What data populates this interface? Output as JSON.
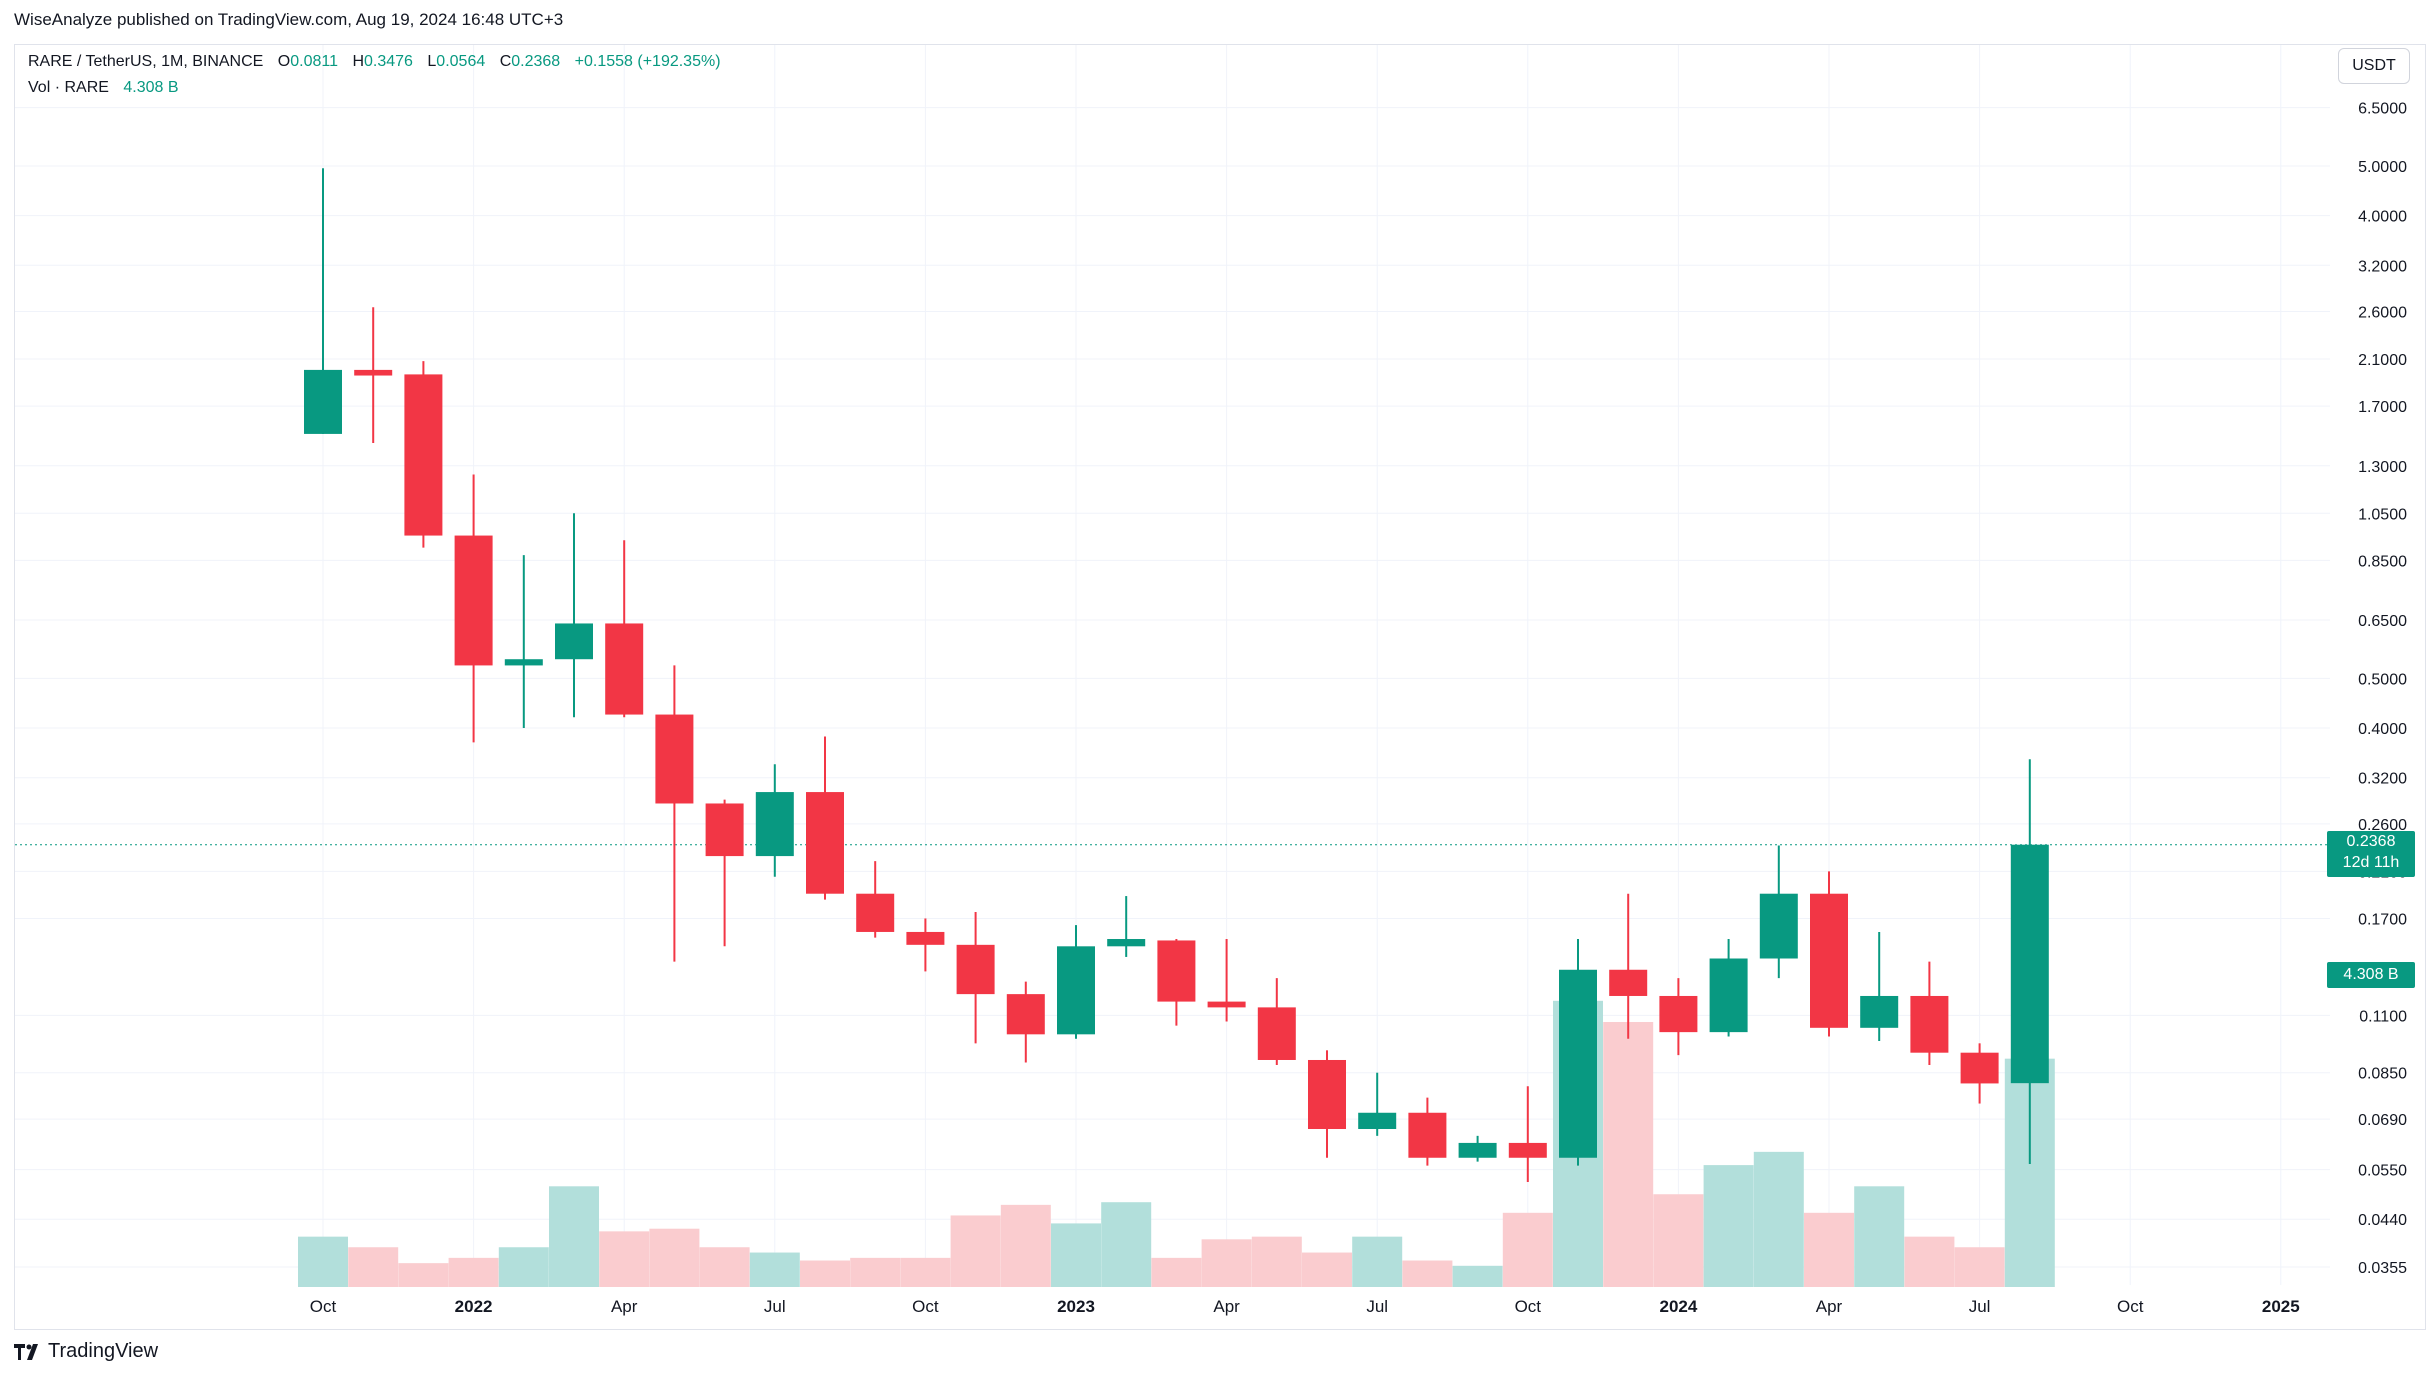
{
  "publisher": "WiseAnalyze published on TradingView.com, Aug 19, 2024 16:48 UTC+3",
  "legend": {
    "symbol": "RARE / TetherUS, 1M, BINANCE",
    "open_label": "O",
    "open": "0.0811",
    "high_label": "H",
    "high": "0.3476",
    "low_label": "L",
    "low": "0.0564",
    "close_label": "C",
    "close": "0.2368",
    "change": "+0.1558 (+192.35%)",
    "vol_label": "Vol · RARE",
    "vol_value": "4.308 B"
  },
  "currency_button": "USDT",
  "last_price_tag": {
    "price": "0.2368",
    "countdown": "12d 11h"
  },
  "volume_tag": "4.308 B",
  "brand": "TradingView",
  "colors": {
    "up": "#089981",
    "down": "#F23645",
    "up_vol": "#B2DFDB",
    "down_vol": "#FACCCF",
    "grid": "#F0F3FA"
  },
  "chart_data": {
    "type": "candlestick",
    "title": "RARE / TetherUS, 1M, BINANCE",
    "yscale": "log",
    "ylim": [
      0.0335,
      7.2
    ],
    "y_ticks": [
      "6.5000",
      "5.0000",
      "4.0000",
      "3.2000",
      "2.6000",
      "2.1000",
      "1.7000",
      "1.3000",
      "1.0500",
      "0.8500",
      "0.6500",
      "0.5000",
      "0.4000",
      "0.3200",
      "0.2600",
      "0.2100",
      "0.1700",
      "0.1100",
      "0.0850",
      "0.0690",
      "0.0550",
      "0.0440",
      "0.0355"
    ],
    "x_ticks": [
      {
        "label": "Oct",
        "index": 0
      },
      {
        "label": "2022",
        "index": 3
      },
      {
        "label": "Apr",
        "index": 6
      },
      {
        "label": "Jul",
        "index": 9
      },
      {
        "label": "Oct",
        "index": 12
      },
      {
        "label": "2023",
        "index": 15
      },
      {
        "label": "Apr",
        "index": 18
      },
      {
        "label": "Jul",
        "index": 21
      },
      {
        "label": "Oct",
        "index": 24
      },
      {
        "label": "2024",
        "index": 27
      },
      {
        "label": "Apr",
        "index": 30
      },
      {
        "label": "Jul",
        "index": 33
      },
      {
        "label": "Oct",
        "index": 36
      },
      {
        "label": "2025",
        "index": 39
      }
    ],
    "last_price": 0.2368,
    "series": [
      {
        "month": "2021-10",
        "open": 1.5,
        "high": 4.95,
        "low": 1.5,
        "close": 2.0,
        "volume": 0.95
      },
      {
        "month": "2021-11",
        "open": 2.0,
        "high": 2.65,
        "low": 1.44,
        "close": 1.95,
        "volume": 0.75
      },
      {
        "month": "2021-12",
        "open": 1.96,
        "high": 2.08,
        "low": 0.9,
        "close": 0.95,
        "volume": 0.45
      },
      {
        "month": "2022-01",
        "open": 0.95,
        "high": 1.25,
        "low": 0.375,
        "close": 0.53,
        "volume": 0.55
      },
      {
        "month": "2022-02",
        "open": 0.53,
        "high": 0.87,
        "low": 0.4,
        "close": 0.545,
        "volume": 0.75
      },
      {
        "month": "2022-03",
        "open": 0.545,
        "high": 1.05,
        "low": 0.42,
        "close": 0.64,
        "volume": 1.9
      },
      {
        "month": "2022-04",
        "open": 0.64,
        "high": 0.93,
        "low": 0.42,
        "close": 0.425,
        "volume": 1.05
      },
      {
        "month": "2022-05",
        "open": 0.425,
        "high": 0.53,
        "low": 0.14,
        "close": 0.285,
        "volume": 1.1
      },
      {
        "month": "2022-06",
        "open": 0.285,
        "high": 0.29,
        "low": 0.15,
        "close": 0.225,
        "volume": 0.75
      },
      {
        "month": "2022-07",
        "open": 0.225,
        "high": 0.34,
        "low": 0.205,
        "close": 0.3,
        "volume": 0.65
      },
      {
        "month": "2022-08",
        "open": 0.3,
        "high": 0.385,
        "low": 0.185,
        "close": 0.19,
        "volume": 0.5
      },
      {
        "month": "2022-09",
        "open": 0.19,
        "high": 0.22,
        "low": 0.156,
        "close": 0.16,
        "volume": 0.55
      },
      {
        "month": "2022-10",
        "open": 0.16,
        "high": 0.17,
        "low": 0.134,
        "close": 0.151,
        "volume": 0.55
      },
      {
        "month": "2022-11",
        "open": 0.151,
        "high": 0.175,
        "low": 0.097,
        "close": 0.121,
        "volume": 1.35
      },
      {
        "month": "2022-12",
        "open": 0.121,
        "high": 0.128,
        "low": 0.089,
        "close": 0.101,
        "volume": 1.55
      },
      {
        "month": "2023-01",
        "open": 0.101,
        "high": 0.165,
        "low": 0.099,
        "close": 0.15,
        "volume": 1.2
      },
      {
        "month": "2023-02",
        "open": 0.15,
        "high": 0.188,
        "low": 0.143,
        "close": 0.155,
        "volume": 1.6
      },
      {
        "month": "2023-03",
        "open": 0.154,
        "high": 0.155,
        "low": 0.105,
        "close": 0.117,
        "volume": 0.55
      },
      {
        "month": "2023-04",
        "open": 0.117,
        "high": 0.155,
        "low": 0.107,
        "close": 0.114,
        "volume": 0.9
      },
      {
        "month": "2023-05",
        "open": 0.114,
        "high": 0.13,
        "low": 0.088,
        "close": 0.09,
        "volume": 0.95
      },
      {
        "month": "2023-06",
        "open": 0.09,
        "high": 0.094,
        "low": 0.058,
        "close": 0.066,
        "volume": 0.65
      },
      {
        "month": "2023-07",
        "open": 0.066,
        "high": 0.085,
        "low": 0.064,
        "close": 0.071,
        "volume": 0.95
      },
      {
        "month": "2023-08",
        "open": 0.071,
        "high": 0.076,
        "low": 0.056,
        "close": 0.058,
        "volume": 0.5
      },
      {
        "month": "2023-09",
        "open": 0.058,
        "high": 0.064,
        "low": 0.057,
        "close": 0.062,
        "volume": 0.4
      },
      {
        "month": "2023-10",
        "open": 0.062,
        "high": 0.08,
        "low": 0.052,
        "close": 0.058,
        "volume": 1.4
      },
      {
        "month": "2023-11",
        "open": 0.058,
        "high": 0.155,
        "low": 0.056,
        "close": 0.135,
        "volume": 5.4
      },
      {
        "month": "2023-12",
        "open": 0.135,
        "high": 0.19,
        "low": 0.099,
        "close": 0.12,
        "volume": 5.0
      },
      {
        "month": "2024-01",
        "open": 0.12,
        "high": 0.13,
        "low": 0.092,
        "close": 0.102,
        "volume": 1.75
      },
      {
        "month": "2024-02",
        "open": 0.102,
        "high": 0.155,
        "low": 0.1,
        "close": 0.142,
        "volume": 2.3
      },
      {
        "month": "2024-03",
        "open": 0.142,
        "high": 0.236,
        "low": 0.13,
        "close": 0.19,
        "volume": 2.55
      },
      {
        "month": "2024-04",
        "open": 0.19,
        "high": 0.21,
        "low": 0.1,
        "close": 0.104,
        "volume": 1.4
      },
      {
        "month": "2024-05",
        "open": 0.104,
        "high": 0.16,
        "low": 0.098,
        "close": 0.12,
        "volume": 1.9
      },
      {
        "month": "2024-06",
        "open": 0.12,
        "high": 0.14,
        "low": 0.088,
        "close": 0.093,
        "volume": 0.95
      },
      {
        "month": "2024-07",
        "open": 0.093,
        "high": 0.097,
        "low": 0.074,
        "close": 0.081,
        "volume": 0.75
      },
      {
        "month": "2024-08",
        "open": 0.0811,
        "high": 0.3476,
        "low": 0.0564,
        "close": 0.2368,
        "volume": 4.308
      }
    ]
  }
}
